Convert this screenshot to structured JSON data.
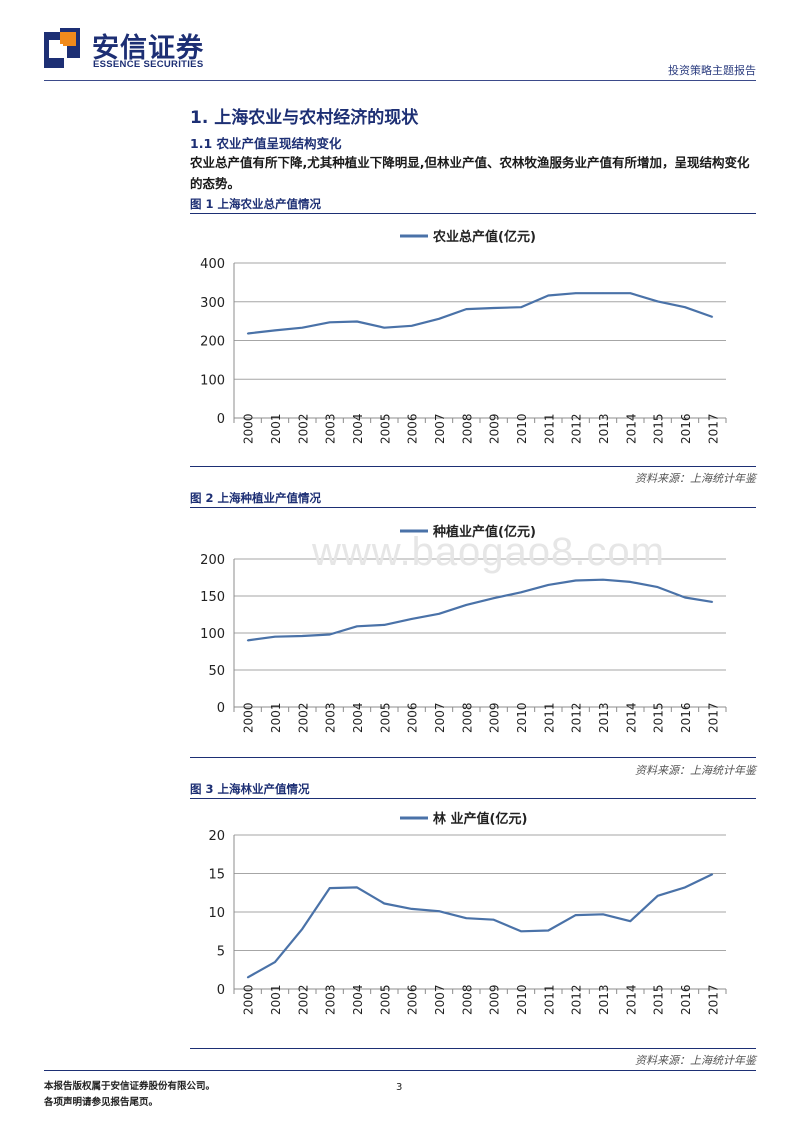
{
  "header": {
    "brand_cn": "安信证券",
    "brand_en": "ESSENCE SECURITIES",
    "report_type": "投资策略主题报告"
  },
  "section": {
    "title": "1. 上海农业与农村经济的现状",
    "subtitle": "1.1 农业产值呈现结构变化",
    "body": "农业总产值有所下降,尤其种植业下降明显,但林业产值、农林牧渔服务业产值有所增加，呈现结构变化的态势。"
  },
  "figures": [
    {
      "title": "图 1 上海农业总产值情况",
      "source": "资料来源：上海统计年鉴"
    },
    {
      "title": "图 2 上海种植业产值情况",
      "source": "资料来源：上海统计年鉴"
    },
    {
      "title": "图 3 上海林业产值情况",
      "source": "资料来源：上海统计年鉴"
    }
  ],
  "chart_data": [
    {
      "type": "line",
      "legend": "农业总产值(亿元)",
      "x": [
        "2000",
        "2001",
        "2002",
        "2003",
        "2004",
        "2005",
        "2006",
        "2007",
        "2008",
        "2009",
        "2010",
        "2011",
        "2012",
        "2013",
        "2014",
        "2015",
        "2016",
        "2017"
      ],
      "yticks": [
        0,
        100,
        200,
        300,
        400
      ],
      "ylim": [
        0,
        400
      ],
      "series": [
        {
          "name": "农业总产值(亿元)",
          "color": "#4a72a8",
          "values": [
            218,
            226,
            233,
            247,
            249,
            233,
            238,
            256,
            281,
            284,
            286,
            316,
            322,
            322,
            322,
            301,
            286,
            261
          ]
        }
      ]
    },
    {
      "type": "line",
      "legend": "种植业产值(亿元)",
      "x": [
        "2000",
        "2001",
        "2002",
        "2003",
        "2004",
        "2005",
        "2006",
        "2007",
        "2008",
        "2009",
        "2010",
        "2011",
        "2012",
        "2013",
        "2014",
        "2015",
        "2016",
        "2017"
      ],
      "yticks": [
        0,
        50,
        100,
        150,
        200
      ],
      "ylim": [
        0,
        200
      ],
      "series": [
        {
          "name": "种植业产值(亿元)",
          "color": "#4a72a8",
          "values": [
            90,
            95,
            96,
            98,
            109,
            111,
            119,
            126,
            138,
            147,
            155,
            165,
            171,
            172,
            169,
            162,
            148,
            142
          ]
        }
      ]
    },
    {
      "type": "line",
      "legend": "林 业产值(亿元)",
      "x": [
        "2000",
        "2001",
        "2002",
        "2003",
        "2004",
        "2005",
        "2006",
        "2007",
        "2008",
        "2009",
        "2010",
        "2011",
        "2012",
        "2013",
        "2014",
        "2015",
        "2016",
        "2017"
      ],
      "yticks": [
        0,
        5,
        10,
        15,
        20
      ],
      "ylim": [
        0,
        20
      ],
      "series": [
        {
          "name": "林 业产值(亿元)",
          "color": "#4a72a8",
          "values": [
            1.5,
            3.5,
            7.8,
            13.1,
            13.2,
            11.1,
            10.4,
            10.1,
            9.2,
            9.0,
            7.5,
            7.6,
            9.6,
            9.7,
            8.8,
            12.1,
            13.2,
            14.9
          ]
        }
      ]
    }
  ],
  "footer": {
    "copyright": "本报告版权属于安信证券股份有限公司。",
    "disclaimer": "各项声明请参见报告尾页。",
    "page": "3"
  },
  "watermark": "www.baogao8.com",
  "colors": {
    "brand": "#1d2f74",
    "accent": "#f08a1c",
    "series": "#4a72a8"
  }
}
